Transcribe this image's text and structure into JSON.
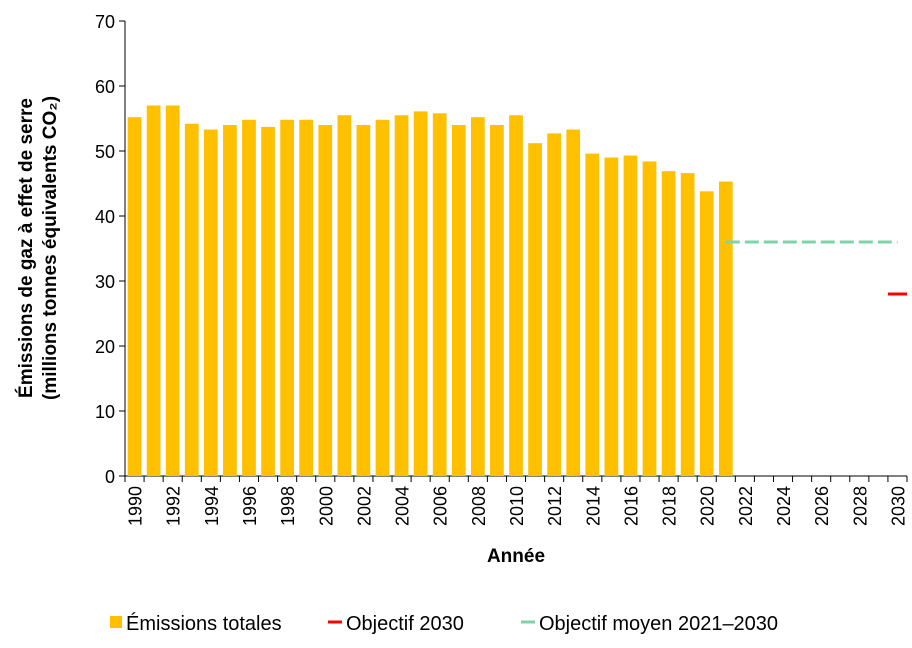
{
  "chart_data": {
    "type": "bar",
    "x_label": "Année",
    "y_label_lines": [
      "Émissions de gaz à effet de serre",
      "(millions tonnes équivalents CO₂)"
    ],
    "categories": [
      "1990",
      null,
      "1992",
      null,
      "1994",
      null,
      "1996",
      null,
      "1998",
      null,
      "2000",
      null,
      "2002",
      null,
      "2004",
      null,
      "2006",
      null,
      "2008",
      null,
      "2010",
      null,
      "2012",
      null,
      "2014",
      null,
      "2016",
      null,
      "2018",
      null,
      "2020",
      null,
      "2022",
      null,
      "2024",
      null,
      "2026",
      null,
      "2028",
      null,
      "2030"
    ],
    "ylim": [
      0,
      70
    ],
    "yticks": [
      0,
      10,
      20,
      30,
      40,
      50,
      60,
      70
    ],
    "series": [
      {
        "name": "Émissions totales",
        "color": "#FFC000",
        "type": "bar",
        "values": [
          55.2,
          57.0,
          57.0,
          54.2,
          53.3,
          54.0,
          54.8,
          53.7,
          54.8,
          54.8,
          54.0,
          55.5,
          54.0,
          54.8,
          55.5,
          56.1,
          55.8,
          54.0,
          55.2,
          54.0,
          55.5,
          51.2,
          52.7,
          53.3,
          49.6,
          49.0,
          49.3,
          48.4,
          46.9,
          46.6,
          43.8,
          45.3,
          null,
          null,
          null,
          null,
          null,
          null,
          null,
          null,
          null
        ]
      },
      {
        "name": "Objectif 2030",
        "color": "#FF0000",
        "type": "line",
        "values": [
          null,
          null,
          null,
          null,
          null,
          null,
          null,
          null,
          null,
          null,
          null,
          null,
          null,
          null,
          null,
          null,
          null,
          null,
          null,
          null,
          null,
          null,
          null,
          null,
          null,
          null,
          null,
          null,
          null,
          null,
          null,
          null,
          null,
          null,
          null,
          null,
          null,
          null,
          null,
          null,
          28
        ]
      },
      {
        "name": "Objectif moyen 2021–2030",
        "color": "#7FD3A8",
        "type": "dashed-line",
        "values": [
          null,
          null,
          null,
          null,
          null,
          null,
          null,
          null,
          null,
          null,
          null,
          null,
          null,
          null,
          null,
          null,
          null,
          null,
          null,
          null,
          null,
          null,
          null,
          null,
          null,
          null,
          null,
          null,
          null,
          null,
          null,
          36,
          36,
          36,
          36,
          36,
          36,
          36,
          36,
          36,
          36
        ]
      }
    ]
  }
}
